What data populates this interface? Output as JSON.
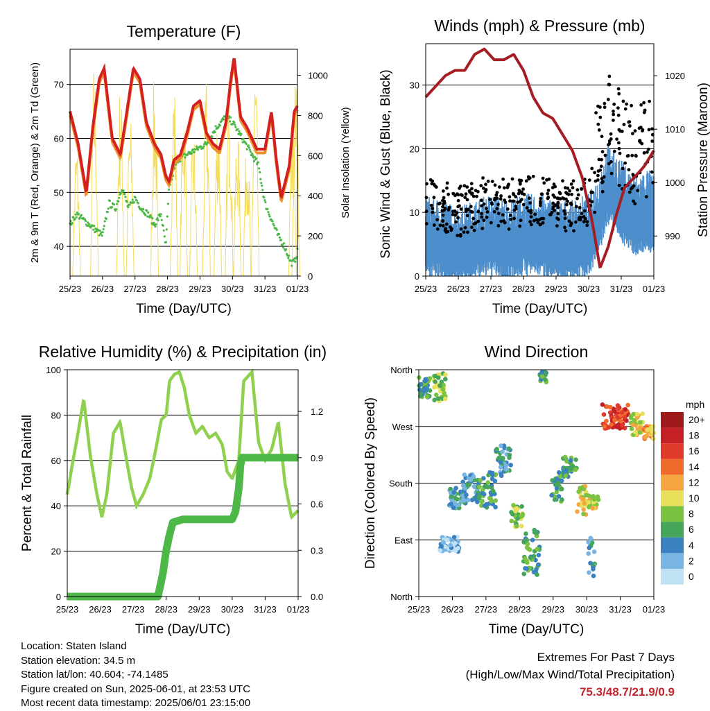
{
  "charts": {
    "temperature": {
      "title": "Temperature (F)",
      "xlabel": "Time (Day/UTC)",
      "ylabel_left": "2m & 9m T (Red, Orange) & 2m Td (Green)",
      "ylabel_right": "Solar Insolation (Yellow)"
    },
    "wind": {
      "title": "Winds (mph) & Pressure (mb)",
      "xlabel": "Time (Day/UTC)",
      "ylabel_left": "Sonic Wind & Gust (Blue, Black)",
      "ylabel_right": "Station Pressure (Maroon)"
    },
    "humidity": {
      "title": "Relative Humidity (%) & Precipitation (in)",
      "xlabel": "Time (Day/UTC)",
      "ylabel_left": "Percent & Total Rainfall"
    },
    "direction": {
      "title": "Wind Direction",
      "xlabel": "Time (Day/UTC)",
      "ylabel_left": "Direction (Colored By Speed)",
      "legend_title": "mph"
    }
  },
  "footer": {
    "location": "Location: Staten Island",
    "elevation": "Station elevation: 34.5 m",
    "latlon": "Station lat/lon: 40.604; -74.1485",
    "created": "Figure created on Sun, 2025-06-01, at 23:53 UTC",
    "recent": "Most recent data timestamp: 2025/06/01 23:15:00",
    "extremes_title": "Extremes For Past 7 Days",
    "extremes_desc": "(High/Low/Max Wind/Total Precipitation)",
    "extremes_values": "75.3/48.7/21.9/0.9"
  },
  "chart_data": [
    {
      "type": "line",
      "title": "Temperature (F)",
      "x_ticks": [
        "25/23",
        "26/23",
        "27/23",
        "28/23",
        "29/23",
        "30/23",
        "31/23",
        "01/23"
      ],
      "xlabel": "Time (Day/UTC)",
      "ylabel": "2m & 9m T (Red, Orange) & 2m Td (Green)",
      "ylim": [
        34.5,
        76.5
      ],
      "y_ticks": [
        40,
        50,
        60,
        70
      ],
      "y2label": "Solar Insolation (Yellow)",
      "y2lim": [
        0,
        1130
      ],
      "y2_ticks": [
        0,
        200,
        400,
        600,
        800,
        1000
      ],
      "grid": "horizontal",
      "colors": {
        "temp_2m": "#d42020",
        "temp_9m": "#f0922c",
        "dewpoint": "#4db848",
        "solar": "#f5dc5a"
      },
      "series": [
        {
          "name": "2m T",
          "x": [
            0,
            0.25,
            0.5,
            0.7,
            0.9,
            1.05,
            1.3,
            1.55,
            1.75,
            1.95,
            2.15,
            2.35,
            2.6,
            2.8,
            2.95,
            3.05,
            3.2,
            3.4,
            3.6,
            3.8,
            4.0,
            4.2,
            4.4,
            4.6,
            4.8,
            4.95,
            5.05,
            5.25,
            5.45,
            5.75,
            6.0,
            6.2,
            6.35,
            6.5,
            6.75,
            6.9,
            7.0
          ],
          "y": [
            65,
            59,
            50,
            62,
            71,
            73,
            60,
            57,
            65,
            73,
            71,
            63,
            59,
            57,
            53,
            52,
            56,
            57,
            61,
            66,
            67,
            61,
            59,
            58,
            63,
            71,
            75,
            64,
            62,
            58,
            58,
            65,
            56,
            49,
            55,
            65,
            66
          ]
        },
        {
          "name": "Td",
          "x": [
            0,
            0.2,
            0.4,
            0.6,
            0.8,
            1.0,
            1.2,
            1.4,
            1.6,
            1.8,
            2.0,
            2.2,
            2.4,
            2.6,
            2.8,
            2.95,
            3.05,
            3.3,
            3.6,
            3.9,
            4.2,
            4.5,
            4.8,
            5.0,
            5.2,
            5.4,
            5.6,
            5.8,
            6.0,
            6.2,
            6.4,
            6.6,
            6.8,
            6.9,
            7.0
          ],
          "y": [
            44,
            46,
            45,
            44,
            43,
            42,
            48,
            47,
            51,
            47,
            49,
            47,
            46,
            44,
            46,
            40,
            51,
            56,
            57,
            58,
            59,
            62,
            64,
            63,
            61,
            59,
            57,
            55,
            48,
            45,
            42,
            40,
            37,
            37,
            39
          ]
        }
      ]
    },
    {
      "type": "scatter",
      "title": "Winds (mph) & Pressure (mb)",
      "x_ticks": [
        "25/23",
        "26/23",
        "27/23",
        "28/23",
        "29/23",
        "30/23",
        "31/23",
        "01/23"
      ],
      "xlabel": "Time (Day/UTC)",
      "ylabel": "Sonic Wind & Gust (Blue, Black)",
      "ylim": [
        0,
        36.5
      ],
      "y_ticks": [
        0,
        10,
        20,
        30
      ],
      "y2label": "Station Pressure (Maroon)",
      "y2lim": [
        982.5,
        1026
      ],
      "y2_ticks": [
        990,
        1000,
        1010,
        1020
      ],
      "grid": "horizontal",
      "colors": {
        "wind": "#4d8fcc",
        "gust": "#000000",
        "pressure": "#a51c22"
      },
      "series": [
        {
          "name": "Station Pressure",
          "x": [
            0,
            0.3,
            0.6,
            0.9,
            1.2,
            1.5,
            1.8,
            2.1,
            2.4,
            2.7,
            3.0,
            3.3,
            3.6,
            3.9,
            4.2,
            4.5,
            4.8,
            5.1,
            5.35,
            5.6,
            5.85,
            6.1,
            6.4,
            6.7,
            7.0
          ],
          "y": [
            1016,
            1018,
            1020,
            1021,
            1021,
            1024,
            1025,
            1023,
            1023,
            1024,
            1021,
            1016,
            1013,
            1012,
            1009,
            1006,
            1001,
            993,
            984,
            988,
            994,
            999,
            1001,
            1003,
            1006
          ]
        }
      ]
    },
    {
      "type": "line",
      "title": "Relative Humidity (%) & Precipitation (in)",
      "x_ticks": [
        "25/23",
        "26/23",
        "27/23",
        "28/23",
        "29/23",
        "30/23",
        "31/23",
        "01/23"
      ],
      "xlabel": "Time (Day/UTC)",
      "ylabel": "Percent & Total Rainfall",
      "ylim": [
        0,
        100
      ],
      "y_ticks": [
        0,
        20,
        40,
        60,
        80,
        100
      ],
      "y2lim": [
        0,
        1.47
      ],
      "y2_ticks": [
        "0.0",
        "0.3",
        "0.6",
        "0.9",
        "1.2"
      ],
      "grid": "horizontal",
      "colors": {
        "humidity": "#8fd14f",
        "precip": "#4db848"
      },
      "series": [
        {
          "name": "Relative Humidity",
          "x": [
            0,
            0.15,
            0.3,
            0.5,
            0.7,
            0.9,
            1.05,
            1.2,
            1.4,
            1.6,
            1.8,
            1.95,
            2.1,
            2.3,
            2.5,
            2.7,
            2.85,
            3.0,
            3.1,
            3.25,
            3.4,
            3.55,
            3.7,
            3.9,
            4.1,
            4.3,
            4.5,
            4.7,
            4.85,
            5.0,
            5.2,
            5.35,
            5.6,
            5.8,
            6.0,
            6.2,
            6.4,
            6.6,
            6.8,
            7.0
          ],
          "y": [
            45,
            58,
            70,
            87,
            62,
            45,
            35,
            45,
            72,
            77,
            60,
            48,
            40,
            45,
            52,
            66,
            78,
            80,
            95,
            98,
            99,
            92,
            80,
            72,
            75,
            70,
            72,
            67,
            55,
            52,
            60,
            95,
            99,
            68,
            60,
            65,
            77,
            50,
            35,
            38
          ]
        },
        {
          "name": "Total Rainfall",
          "x": [
            0,
            2.75,
            2.9,
            3.0,
            3.1,
            3.2,
            3.5,
            4.0,
            4.5,
            5.0,
            5.1,
            5.2,
            5.25,
            5.3,
            5.5,
            6.0,
            6.5,
            7.0
          ],
          "y": [
            0,
            0,
            0.15,
            0.3,
            0.4,
            0.48,
            0.5,
            0.5,
            0.5,
            0.5,
            0.55,
            0.7,
            0.85,
            0.9,
            0.9,
            0.9,
            0.9,
            0.9
          ]
        }
      ]
    },
    {
      "type": "scatter",
      "title": "Wind Direction",
      "x_ticks": [
        "25/23",
        "26/23",
        "27/23",
        "28/23",
        "29/23",
        "30/23",
        "31/23",
        "01/23"
      ],
      "xlabel": "Time (Day/UTC)",
      "ylabel": "Direction (Colored By Speed)",
      "y_ticks": [
        "North",
        "West",
        "South",
        "East",
        "North"
      ],
      "grid": "horizontal",
      "legend": {
        "title": "mph",
        "position": "right",
        "labels": [
          "20+",
          "18",
          "16",
          "14",
          "12",
          "10",
          "8",
          "6",
          "4",
          "2",
          "0"
        ],
        "colors": [
          "#9e1a1a",
          "#c52026",
          "#e03a2a",
          "#f06a2b",
          "#f5a541",
          "#e8e05a",
          "#7cc242",
          "#45a65a",
          "#3a81bf",
          "#79b5e3",
          "#bfe3f5"
        ]
      }
    }
  ]
}
